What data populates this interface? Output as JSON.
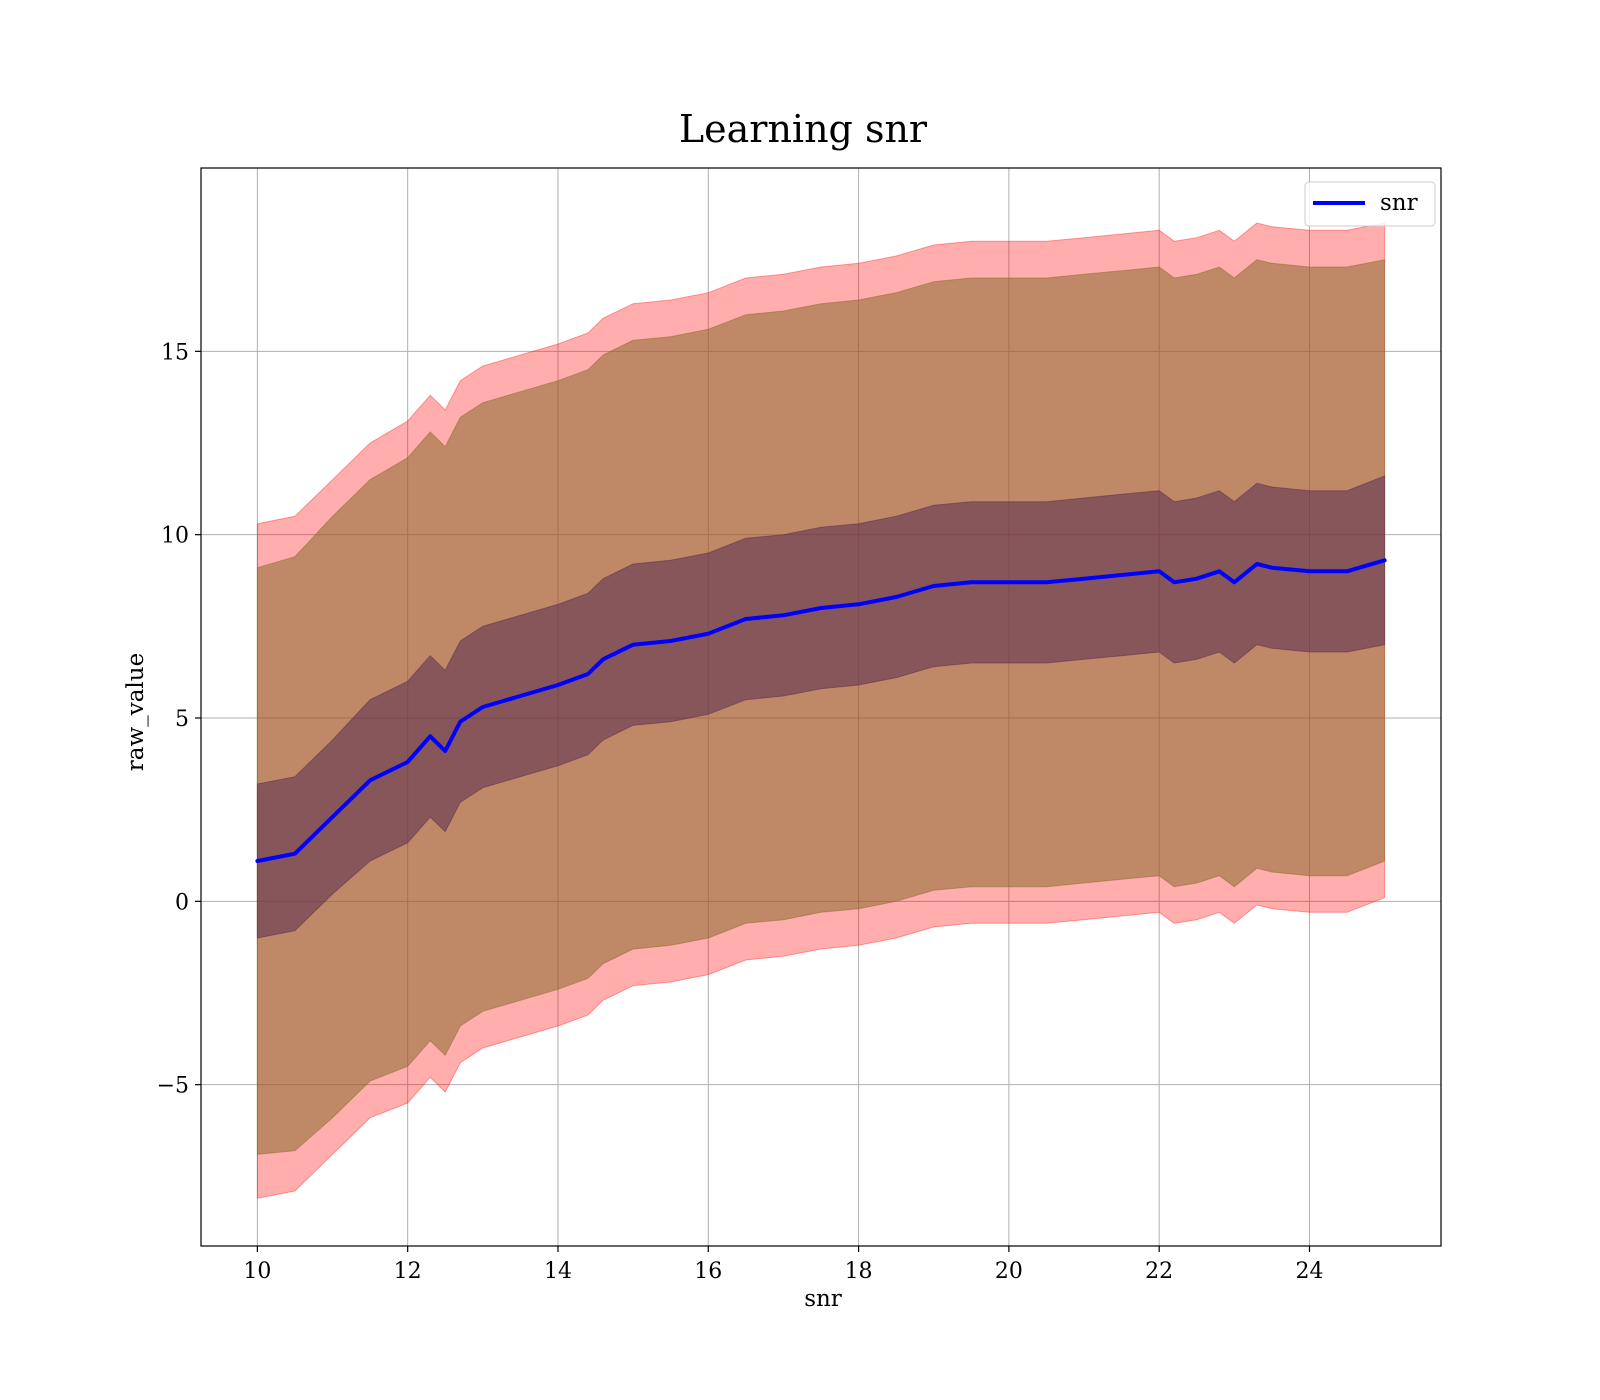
{
  "chart_data": {
    "type": "line",
    "title": "Learning snr",
    "xlabel": "snr",
    "ylabel": "raw_value",
    "xlim": [
      9.25,
      25.75
    ],
    "ylim": [
      -9.4,
      20.0
    ],
    "xticks": [
      10,
      12,
      14,
      16,
      18,
      20,
      22,
      24
    ],
    "yticks": [
      -5,
      0,
      5,
      10,
      15
    ],
    "ytick_labels": [
      "−5",
      "0",
      "5",
      "10",
      "15"
    ],
    "grid": true,
    "legend_placement": "top-right",
    "colors": {
      "mean_line": "#0000ff",
      "outer_band": "#ff0000",
      "middle_band": "#8b6b2e",
      "inner_band": "#5a2b50"
    },
    "series": [
      {
        "name": "snr",
        "x": [
          10,
          10.5,
          11,
          11.5,
          12,
          12.3,
          12.5,
          12.7,
          13,
          13.5,
          14,
          14.4,
          14.6,
          15,
          15.5,
          16,
          16.5,
          17,
          17.5,
          18,
          18.5,
          19,
          19.5,
          20,
          20.5,
          21,
          21.5,
          22,
          22.2,
          22.5,
          22.8,
          23,
          23.3,
          23.5,
          24,
          24.5,
          25
        ],
        "mean": [
          1.1,
          1.3,
          2.3,
          3.3,
          3.8,
          4.5,
          4.1,
          4.9,
          5.3,
          5.6,
          5.9,
          6.2,
          6.6,
          7.0,
          7.1,
          7.3,
          7.7,
          7.8,
          8.0,
          8.1,
          8.3,
          8.6,
          8.7,
          8.7,
          8.7,
          8.8,
          8.9,
          9.0,
          8.7,
          8.8,
          9.0,
          8.7,
          9.2,
          9.1,
          9.0,
          9.0,
          9.3
        ],
        "band_inner": [
          2.1,
          2.1,
          2.1,
          2.2,
          2.2,
          2.2,
          2.2,
          2.2,
          2.2,
          2.2,
          2.2,
          2.2,
          2.2,
          2.2,
          2.2,
          2.2,
          2.2,
          2.2,
          2.2,
          2.2,
          2.2,
          2.2,
          2.2,
          2.2,
          2.2,
          2.2,
          2.2,
          2.2,
          2.2,
          2.2,
          2.2,
          2.2,
          2.2,
          2.2,
          2.2,
          2.2,
          2.3
        ],
        "band_middle": [
          8.0,
          8.1,
          8.2,
          8.2,
          8.3,
          8.3,
          8.3,
          8.3,
          8.3,
          8.3,
          8.3,
          8.3,
          8.3,
          8.3,
          8.3,
          8.3,
          8.3,
          8.3,
          8.3,
          8.3,
          8.3,
          8.3,
          8.3,
          8.3,
          8.3,
          8.3,
          8.3,
          8.3,
          8.3,
          8.3,
          8.3,
          8.3,
          8.3,
          8.3,
          8.3,
          8.3,
          8.2
        ],
        "band_outer": [
          9.2,
          9.2,
          9.2,
          9.2,
          9.3,
          9.3,
          9.3,
          9.3,
          9.3,
          9.3,
          9.3,
          9.3,
          9.3,
          9.3,
          9.3,
          9.3,
          9.3,
          9.3,
          9.3,
          9.3,
          9.3,
          9.3,
          9.3,
          9.3,
          9.3,
          9.3,
          9.3,
          9.3,
          9.3,
          9.3,
          9.3,
          9.3,
          9.3,
          9.3,
          9.3,
          9.3,
          9.2
        ]
      }
    ]
  }
}
